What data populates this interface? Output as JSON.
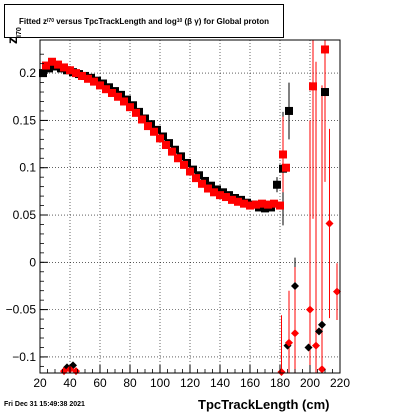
{
  "chart_data": {
    "type": "scatter",
    "title_parts": {
      "fitted": "Fitted",
      "z": "z",
      "z_sub": "I70",
      "mid": "versus TpcTrackLength and log",
      "log_sub": "10",
      "bg": "(β  γ)",
      "tail": "for Global proton"
    },
    "xlabel": "TpcTrackLength (cm)",
    "ylabel": "z",
    "ylabel_sub": "I70",
    "xlim": [
      20,
      220
    ],
    "ylim": [
      -0.117,
      0.235
    ],
    "xticks": [
      20,
      40,
      60,
      80,
      100,
      120,
      140,
      160,
      180,
      200,
      220
    ],
    "yticks": [
      -0.1,
      -0.05,
      0,
      0.05,
      0.1,
      0.15,
      0.2
    ],
    "ytick_labels": [
      "−0.1",
      "−0.05",
      "0",
      "0.05",
      "0.1",
      "0.15",
      "0.2"
    ],
    "grid": true,
    "series": [
      {
        "marker": "square",
        "color": "#000000",
        "points": [
          [
            22,
            0.2
          ],
          [
            26,
            0.205
          ],
          [
            30,
            0.207
          ],
          [
            34,
            0.205
          ],
          [
            38,
            0.203
          ],
          [
            42,
            0.201
          ],
          [
            46,
            0.199
          ],
          [
            50,
            0.197
          ],
          [
            54,
            0.195
          ],
          [
            58,
            0.192
          ],
          [
            62,
            0.189
          ],
          [
            66,
            0.185
          ],
          [
            70,
            0.181
          ],
          [
            74,
            0.177
          ],
          [
            78,
            0.172
          ],
          [
            82,
            0.166
          ],
          [
            86,
            0.159
          ],
          [
            90,
            0.152
          ],
          [
            94,
            0.146
          ],
          [
            98,
            0.14
          ],
          [
            102,
            0.133
          ],
          [
            106,
            0.126
          ],
          [
            110,
            0.119
          ],
          [
            114,
            0.112
          ],
          [
            118,
            0.105
          ],
          [
            122,
            0.098
          ],
          [
            126,
            0.092
          ],
          [
            130,
            0.086
          ],
          [
            134,
            0.081
          ],
          [
            138,
            0.077
          ],
          [
            142,
            0.074
          ],
          [
            146,
            0.071
          ],
          [
            150,
            0.068
          ],
          [
            154,
            0.066
          ],
          [
            158,
            0.063
          ],
          [
            162,
            0.061
          ],
          [
            166,
            0.058
          ],
          [
            170,
            0.057
          ],
          [
            174,
            0.058
          ],
          [
            178,
            0.082
          ],
          [
            182,
            0.099
          ],
          [
            186,
            0.16
          ],
          [
            210,
            0.18
          ]
        ],
        "errors": [
          [
            178,
            0.008
          ],
          [
            182,
            0.06
          ],
          [
            186,
            0.03
          ],
          [
            210,
            0.03
          ]
        ]
      },
      {
        "marker": "square",
        "color": "#ff0000",
        "points": [
          [
            24,
            0.208
          ],
          [
            28,
            0.212
          ],
          [
            32,
            0.209
          ],
          [
            36,
            0.206
          ],
          [
            40,
            0.203
          ],
          [
            44,
            0.2
          ],
          [
            48,
            0.197
          ],
          [
            52,
            0.194
          ],
          [
            56,
            0.191
          ],
          [
            60,
            0.187
          ],
          [
            64,
            0.183
          ],
          [
            68,
            0.179
          ],
          [
            72,
            0.175
          ],
          [
            76,
            0.17
          ],
          [
            80,
            0.164
          ],
          [
            84,
            0.158
          ],
          [
            88,
            0.151
          ],
          [
            92,
            0.144
          ],
          [
            96,
            0.138
          ],
          [
            100,
            0.131
          ],
          [
            104,
            0.124
          ],
          [
            108,
            0.117
          ],
          [
            112,
            0.11
          ],
          [
            116,
            0.103
          ],
          [
            120,
            0.096
          ],
          [
            124,
            0.089
          ],
          [
            128,
            0.083
          ],
          [
            132,
            0.078
          ],
          [
            136,
            0.074
          ],
          [
            140,
            0.071
          ],
          [
            144,
            0.069
          ],
          [
            148,
            0.066
          ],
          [
            152,
            0.064
          ],
          [
            156,
            0.062
          ],
          [
            160,
            0.06
          ],
          [
            164,
            0.061
          ],
          [
            168,
            0.062
          ],
          [
            172,
            0.061
          ],
          [
            176,
            0.062
          ],
          [
            180,
            0.06
          ],
          [
            182,
            0.114
          ],
          [
            184,
            0.1
          ],
          [
            202,
            0.186
          ],
          [
            210,
            0.225
          ]
        ],
        "errors": [
          [
            182,
            0.04
          ],
          [
            202,
            0.14
          ],
          [
            210,
            0.14
          ]
        ]
      },
      {
        "marker": "diamond",
        "color": "#000000",
        "points": [
          [
            38,
            -0.111
          ],
          [
            42,
            -0.109
          ],
          [
            185,
            -0.088
          ],
          [
            190,
            -0.025
          ],
          [
            199,
            -0.09
          ],
          [
            206,
            -0.073
          ],
          [
            208,
            -0.066
          ]
        ],
        "errors": [
          [
            190,
            0.03
          ]
        ]
      },
      {
        "marker": "diamond",
        "color": "#ff0000",
        "points": [
          [
            36,
            -0.115
          ],
          [
            40,
            -0.113
          ],
          [
            44,
            -0.115
          ],
          [
            181,
            -0.116
          ],
          [
            186,
            -0.085
          ],
          [
            190,
            -0.075
          ],
          [
            200,
            -0.05
          ],
          [
            204,
            -0.088
          ],
          [
            208,
            -0.113
          ],
          [
            213,
            0.041
          ],
          [
            218,
            -0.031
          ]
        ],
        "errors": [
          [
            181,
            0.06
          ],
          [
            186,
            0.055
          ],
          [
            190,
            0.07
          ],
          [
            200,
            0.2
          ],
          [
            204,
            0.3
          ],
          [
            208,
            0.3
          ],
          [
            213,
            0.1
          ],
          [
            218,
            0.03
          ]
        ]
      }
    ]
  },
  "footer": "Fri Dec 31 15:49:38 2021"
}
